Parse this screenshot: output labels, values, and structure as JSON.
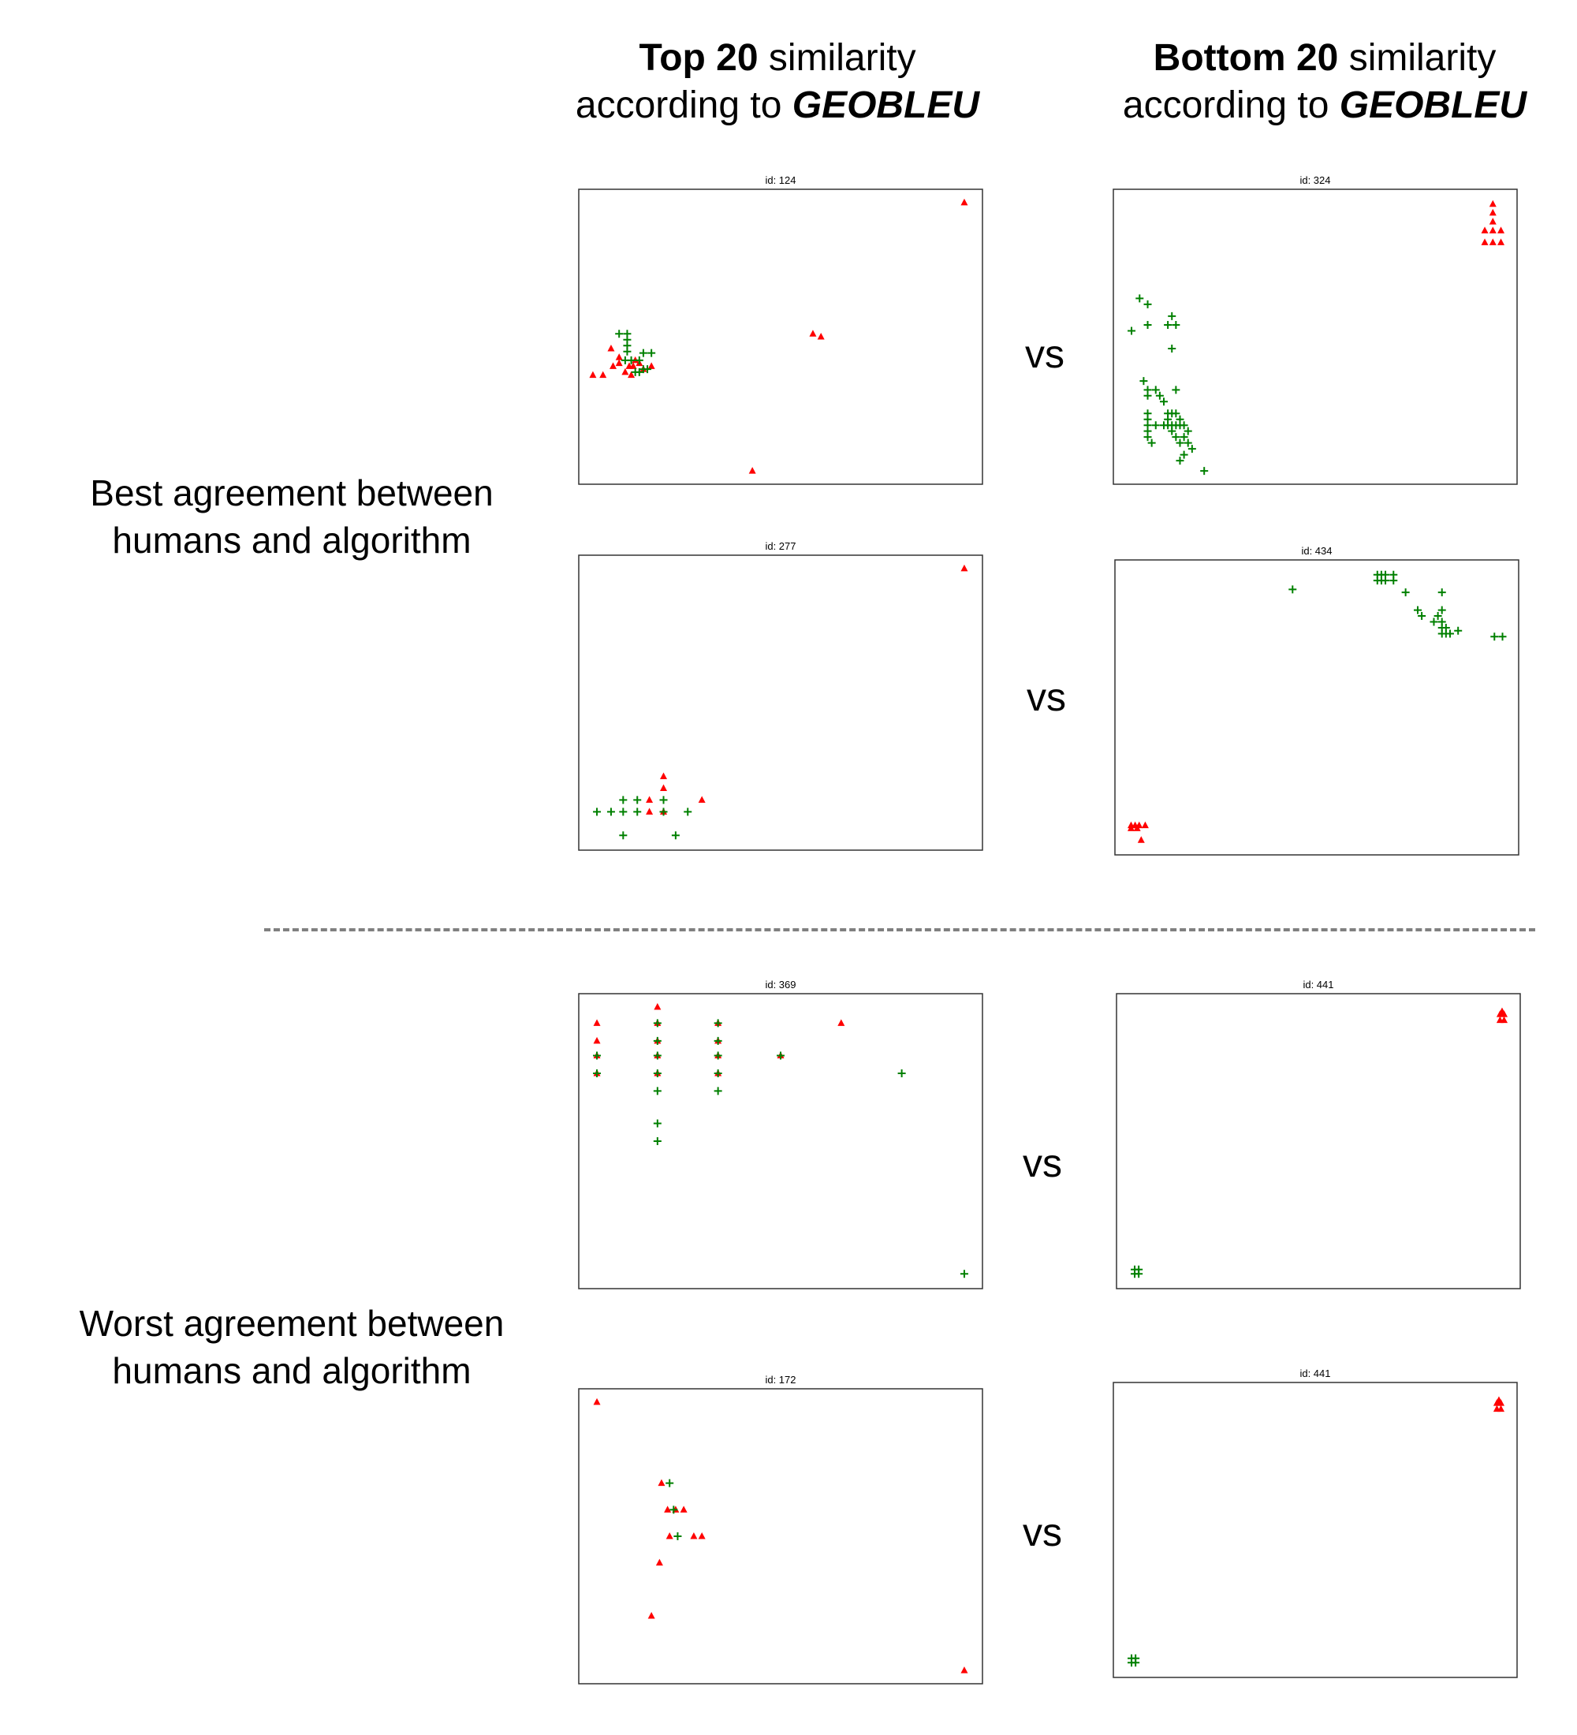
{
  "headers": {
    "left": {
      "bold": "Top 20",
      "plain": "similarity",
      "line2_plain": "according to",
      "line2_italic": "GEOBLEU"
    },
    "right": {
      "bold": "Bottom 20",
      "plain": "similarity",
      "line2_plain": "according to",
      "line2_italic": "GEOBLEU"
    }
  },
  "row_labels": {
    "best": {
      "line1": "Best agreement between",
      "line2": "humans and algorithm"
    },
    "worst": {
      "line1": "Worst agreement between",
      "line2": "humans and algorithm"
    }
  },
  "vs_label": "vs",
  "colors": {
    "triangle": "#ff0000",
    "plus": "#008000",
    "frame": "#333333",
    "divider": "#808080"
  },
  "chart_data": [
    {
      "type": "scatter",
      "id_label": "id: 124",
      "xlim": [
        0,
        100
      ],
      "ylim": [
        0,
        100
      ],
      "series": [
        {
          "name": "red-triangles",
          "marker": "triangle",
          "points": [
            [
              95.5,
              95.5
            ],
            [
              3.5,
              37
            ],
            [
              6,
              37
            ],
            [
              8.5,
              40
            ],
            [
              8,
              46
            ],
            [
              10,
              41
            ],
            [
              10,
              43
            ],
            [
              11.5,
              38
            ],
            [
              12.5,
              40
            ],
            [
              13.5,
              40
            ],
            [
              14,
              42
            ],
            [
              15,
              41
            ],
            [
              13,
              37
            ],
            [
              16,
              39
            ],
            [
              18,
              40
            ],
            [
              58,
              51
            ],
            [
              60,
              50
            ],
            [
              43,
              4.5
            ]
          ]
        },
        {
          "name": "green-plus",
          "marker": "plus",
          "points": [
            [
              10,
              51
            ],
            [
              12,
              51
            ],
            [
              12,
              49
            ],
            [
              12,
              47
            ],
            [
              12,
              45
            ],
            [
              11.5,
              42
            ],
            [
              13,
              42
            ],
            [
              15,
              42
            ],
            [
              16,
              44.5
            ],
            [
              18,
              44.5
            ],
            [
              14,
              38
            ],
            [
              15,
              38
            ],
            [
              16,
              39
            ],
            [
              17,
              39
            ]
          ]
        }
      ]
    },
    {
      "type": "scatter",
      "id_label": "id: 324",
      "xlim": [
        0,
        100
      ],
      "ylim": [
        0,
        100
      ],
      "series": [
        {
          "name": "red-triangles",
          "marker": "triangle",
          "points": [
            [
              94,
              95
            ],
            [
              94,
              92
            ],
            [
              94,
              89
            ],
            [
              94,
              86
            ],
            [
              92,
              86
            ],
            [
              96,
              86
            ],
            [
              92,
              82
            ],
            [
              94,
              82
            ],
            [
              96,
              82
            ]
          ]
        },
        {
          "name": "green-plus",
          "marker": "plus",
          "points": [
            [
              6.5,
              63
            ],
            [
              8.5,
              61
            ],
            [
              4.5,
              52
            ],
            [
              8.5,
              54
            ],
            [
              13.5,
              54
            ],
            [
              14.5,
              57
            ],
            [
              15.5,
              54
            ],
            [
              14.5,
              46
            ],
            [
              7.5,
              35
            ],
            [
              8.5,
              32
            ],
            [
              10.5,
              32
            ],
            [
              11.5,
              30
            ],
            [
              12.5,
              28
            ],
            [
              15.5,
              32
            ],
            [
              8.5,
              30
            ],
            [
              8.5,
              24
            ],
            [
              8.5,
              22
            ],
            [
              8.5,
              20
            ],
            [
              8.5,
              18
            ],
            [
              8.5,
              16
            ],
            [
              9.5,
              14
            ],
            [
              10.5,
              20
            ],
            [
              12.5,
              20
            ],
            [
              13.5,
              24
            ],
            [
              13.5,
              22
            ],
            [
              14.5,
              24
            ],
            [
              15.5,
              24
            ],
            [
              16.5,
              22
            ],
            [
              13.5,
              20
            ],
            [
              14.5,
              20
            ],
            [
              15.5,
              20
            ],
            [
              16.5,
              20
            ],
            [
              17.5,
              20
            ],
            [
              18.5,
              18
            ],
            [
              14.5,
              18
            ],
            [
              15.5,
              16
            ],
            [
              16.5,
              14
            ],
            [
              17.5,
              16
            ],
            [
              18.5,
              14
            ],
            [
              19.5,
              12
            ],
            [
              17.5,
              10
            ],
            [
              16.5,
              8
            ],
            [
              22.5,
              4.5
            ]
          ]
        }
      ]
    },
    {
      "type": "scatter",
      "id_label": "id: 277",
      "xlim": [
        0,
        100
      ],
      "ylim": [
        0,
        100
      ],
      "series": [
        {
          "name": "red-triangles",
          "marker": "triangle",
          "points": [
            [
              95.5,
              95.5
            ],
            [
              21,
              25
            ],
            [
              21,
              21
            ],
            [
              17.5,
              17
            ],
            [
              17.5,
              13
            ],
            [
              21,
              13
            ],
            [
              30.5,
              17
            ]
          ]
        },
        {
          "name": "green-plus",
          "marker": "plus",
          "points": [
            [
              4.5,
              13
            ],
            [
              8,
              13
            ],
            [
              11,
              13
            ],
            [
              14.5,
              13
            ],
            [
              21,
              13
            ],
            [
              21,
              17
            ],
            [
              11,
              17
            ],
            [
              14.5,
              17
            ],
            [
              27,
              13
            ],
            [
              11,
              5
            ],
            [
              24,
              5
            ]
          ]
        }
      ]
    },
    {
      "type": "scatter",
      "id_label": "id: 434",
      "xlim": [
        0,
        100
      ],
      "ylim": [
        0,
        100
      ],
      "series": [
        {
          "name": "red-triangles",
          "marker": "triangle",
          "points": [
            [
              4,
              10
            ],
            [
              5,
              10
            ],
            [
              6,
              10
            ],
            [
              7.5,
              10
            ],
            [
              4,
              9
            ],
            [
              5.5,
              9
            ],
            [
              6.5,
              5
            ]
          ]
        },
        {
          "name": "green-plus",
          "marker": "plus",
          "points": [
            [
              44,
              90
            ],
            [
              65,
              95
            ],
            [
              66,
              95
            ],
            [
              67,
              95
            ],
            [
              65,
              93
            ],
            [
              66,
              93
            ],
            [
              67,
              93
            ],
            [
              69,
              95
            ],
            [
              69,
              93
            ],
            [
              72,
              89
            ],
            [
              75,
              83
            ],
            [
              76,
              81
            ],
            [
              79,
              79
            ],
            [
              80,
              81
            ],
            [
              81,
              83
            ],
            [
              81,
              79
            ],
            [
              81,
              77
            ],
            [
              81,
              75
            ],
            [
              82,
              75
            ],
            [
              82,
              77
            ],
            [
              83,
              75
            ],
            [
              85,
              76
            ],
            [
              81,
              89
            ],
            [
              94,
              74
            ],
            [
              96,
              74
            ]
          ]
        }
      ]
    },
    {
      "type": "scatter",
      "id_label": "id: 369",
      "xlim": [
        0,
        100
      ],
      "ylim": [
        0,
        100
      ],
      "series": [
        {
          "name": "red-triangles",
          "marker": "triangle",
          "points": [
            [
              4.5,
              90
            ],
            [
              4.5,
              84
            ],
            [
              4.5,
              79
            ],
            [
              4.5,
              73
            ],
            [
              19.5,
              95.5
            ],
            [
              19.5,
              90
            ],
            [
              19.5,
              84
            ],
            [
              19.5,
              79
            ],
            [
              19.5,
              73
            ],
            [
              34.5,
              90
            ],
            [
              34.5,
              84
            ],
            [
              34.5,
              79
            ],
            [
              34.5,
              73
            ],
            [
              50,
              79
            ],
            [
              65,
              90
            ]
          ]
        },
        {
          "name": "green-plus",
          "marker": "plus",
          "points": [
            [
              4.5,
              79
            ],
            [
              4.5,
              73
            ],
            [
              19.5,
              90
            ],
            [
              19.5,
              84
            ],
            [
              19.5,
              79
            ],
            [
              19.5,
              73
            ],
            [
              19.5,
              67
            ],
            [
              19.5,
              56
            ],
            [
              19.5,
              50
            ],
            [
              34.5,
              90
            ],
            [
              34.5,
              84
            ],
            [
              34.5,
              79
            ],
            [
              34.5,
              73
            ],
            [
              34.5,
              67
            ],
            [
              50,
              79
            ],
            [
              80,
              73
            ],
            [
              95.5,
              5
            ]
          ]
        }
      ]
    },
    {
      "type": "scatter",
      "id_label": "id: 441",
      "xlim": [
        0,
        100
      ],
      "ylim": [
        0,
        100
      ],
      "series": [
        {
          "name": "red-triangles",
          "marker": "triangle",
          "points": [
            [
              95.5,
              94
            ],
            [
              95,
              93
            ],
            [
              96,
              93
            ],
            [
              95,
              91
            ],
            [
              96,
              91
            ]
          ]
        },
        {
          "name": "green-plus",
          "marker": "plus",
          "points": [
            [
              4.5,
              6.5
            ],
            [
              5.5,
              6.5
            ],
            [
              4.5,
              5
            ],
            [
              5.5,
              5
            ]
          ]
        }
      ]
    },
    {
      "type": "scatter",
      "id_label": "id: 172",
      "xlim": [
        0,
        100
      ],
      "ylim": [
        0,
        100
      ],
      "series": [
        {
          "name": "red-triangles",
          "marker": "triangle",
          "points": [
            [
              4.5,
              95.5
            ],
            [
              20.5,
              68
            ],
            [
              22,
              59
            ],
            [
              24,
              59
            ],
            [
              26,
              59
            ],
            [
              22.5,
              50
            ],
            [
              28.5,
              50
            ],
            [
              30.5,
              50
            ],
            [
              20,
              41
            ],
            [
              18,
              23
            ],
            [
              95.5,
              4.5
            ]
          ]
        },
        {
          "name": "green-plus",
          "marker": "plus",
          "points": [
            [
              22.5,
              68
            ],
            [
              23.5,
              59
            ],
            [
              24.5,
              50
            ]
          ]
        }
      ]
    },
    {
      "type": "scatter",
      "id_label": "id: 441",
      "xlim": [
        0,
        100
      ],
      "ylim": [
        0,
        100
      ],
      "series": [
        {
          "name": "red-triangles",
          "marker": "triangle",
          "points": [
            [
              95.5,
              94
            ],
            [
              95,
              93
            ],
            [
              96,
              93
            ],
            [
              95,
              91
            ],
            [
              96,
              91
            ]
          ]
        },
        {
          "name": "green-plus",
          "marker": "plus",
          "points": [
            [
              4.5,
              6.5
            ],
            [
              5.5,
              6.5
            ],
            [
              4.5,
              5
            ],
            [
              5.5,
              5
            ]
          ]
        }
      ]
    }
  ]
}
